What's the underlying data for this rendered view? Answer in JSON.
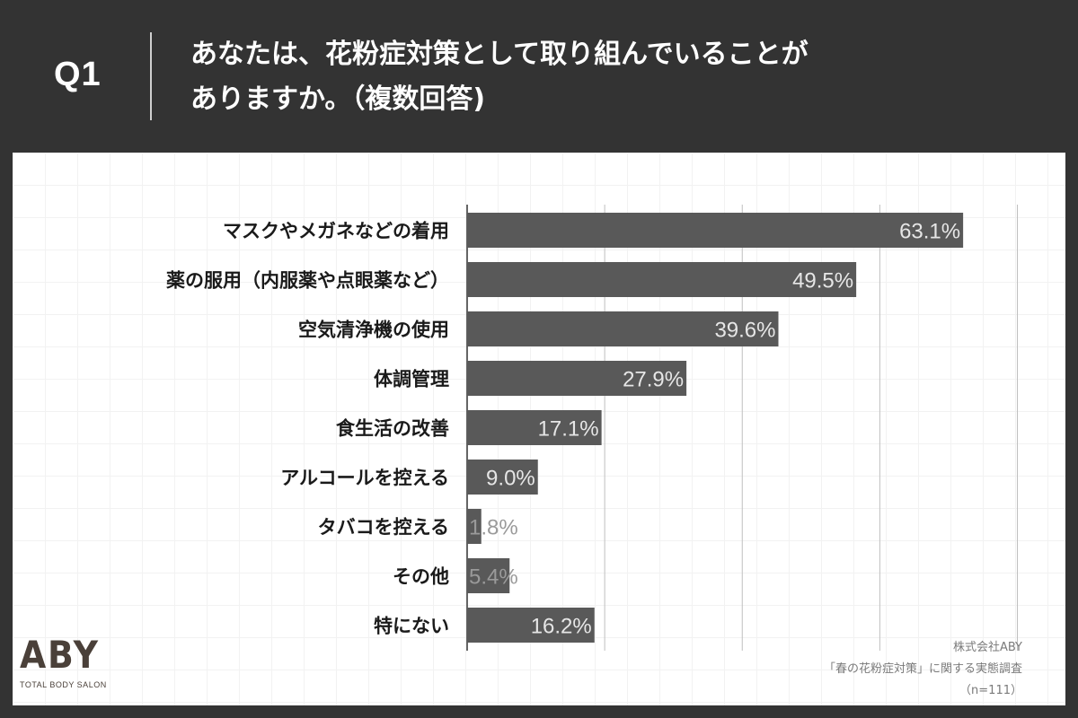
{
  "header": {
    "question_number": "Q1",
    "question_line1": "あなたは、花粉症対策として取り組んでいることが",
    "question_line2": "ありますか。（複数回答)"
  },
  "chart_data": {
    "type": "bar",
    "orientation": "horizontal",
    "categories": [
      "マスクやメガネなどの着用",
      "薬の服用（内服薬や点眼薬など）",
      "空気清浄機の使用",
      "体調管理",
      "食生活の改善",
      "アルコールを控える",
      "タバコを控える",
      "その他",
      "特にない"
    ],
    "values": [
      63.1,
      49.5,
      39.6,
      27.9,
      17.1,
      9.0,
      1.8,
      5.4,
      16.2
    ],
    "value_labels": [
      "63.1%",
      "49.5%",
      "39.6%",
      "27.9%",
      "17.1%",
      "9.0%",
      "1.8%",
      "5.4%",
      "16.2%"
    ],
    "xlim": [
      0,
      70
    ],
    "grid": true,
    "colors": {
      "bar": "#595959",
      "label_inside": "#e6e6e6",
      "label_outside": "#9a9a9a",
      "gridline": "#bfbfbf",
      "category_text": "#1a1a1a"
    }
  },
  "logo": {
    "mark": "ABY",
    "tagline": "TOTAL BODY SALON"
  },
  "source": {
    "company": "株式会社ABY",
    "survey": "「春の花粉症対策」に関する実態調査",
    "sample": "（n=111）"
  }
}
